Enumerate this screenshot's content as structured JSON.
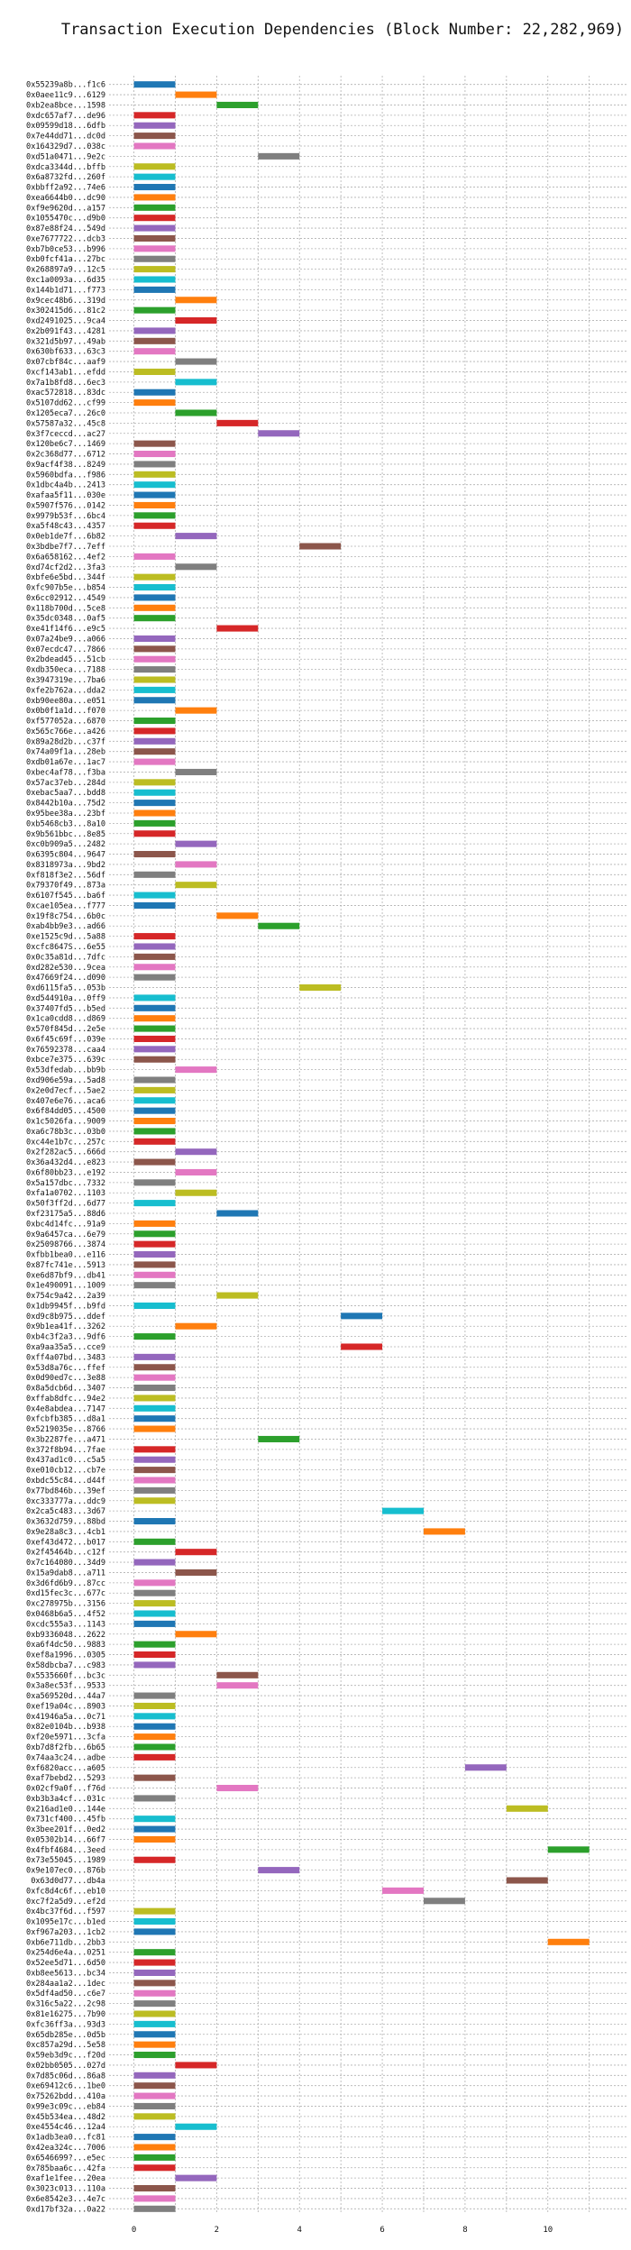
{
  "chart_data": {
    "type": "bar",
    "orientation": "horizontal",
    "title": "Transaction Execution Dependencies (Block Number: 22,282,969)",
    "xlabel": "",
    "ylabel": "",
    "xlim": [
      -0.6,
      11.9
    ],
    "xticks": [
      0,
      2,
      4,
      6,
      8,
      10
    ],
    "grid": "dotted",
    "palette": [
      "#1f77b4",
      "#ff7f0e",
      "#2ca02c",
      "#d62728",
      "#9467bd",
      "#8c564b",
      "#e377c2",
      "#7f7f7f",
      "#bcbd22",
      "#17becf"
    ],
    "bar_width": 1,
    "transactions": [
      {
        "label": "0x55239a8b...f1c6",
        "start": 0
      },
      {
        "label": "0x0aee11c9...6129",
        "start": 1
      },
      {
        "label": "0xb2ea8bce...1598",
        "start": 2
      },
      {
        "label": "0xdc657af7...de96",
        "start": 0
      },
      {
        "label": "0x09599d18...6dfb",
        "start": 0
      },
      {
        "label": "0x7e44dd71...dc0d",
        "start": 0
      },
      {
        "label": "0x164329d7...038c",
        "start": 0
      },
      {
        "label": "0xd51a0471...9e2c",
        "start": 3
      },
      {
        "label": "0xdca3344d...bffb",
        "start": 0
      },
      {
        "label": "0x6a8732fd...260f",
        "start": 0
      },
      {
        "label": "0xbbff2a92...74e6",
        "start": 0
      },
      {
        "label": "0xea6644b0...dc90",
        "start": 0
      },
      {
        "label": "0xf9e9620d...a157",
        "start": 0
      },
      {
        "label": "0x1055470c...d9b0",
        "start": 0
      },
      {
        "label": "0x87e88f24...549d",
        "start": 0
      },
      {
        "label": "0xe7677722...dcb3",
        "start": 0
      },
      {
        "label": "0xb7b0ce53...b996",
        "start": 0
      },
      {
        "label": "0xb0fcf41a...27bc",
        "start": 0
      },
      {
        "label": "0x268897a9...12c5",
        "start": 0
      },
      {
        "label": "0xc1a0093a...6d35",
        "start": 0
      },
      {
        "label": "0x144b1d71...f773",
        "start": 0
      },
      {
        "label": "0x9cec48b6...319d",
        "start": 1
      },
      {
        "label": "0x302415d6...81c2",
        "start": 0
      },
      {
        "label": "0xd2491025...9ca4",
        "start": 1
      },
      {
        "label": "0x2b091f43...4281",
        "start": 0
      },
      {
        "label": "0x321d5b97...49ab",
        "start": 0
      },
      {
        "label": "0x630bf633...63c3",
        "start": 0
      },
      {
        "label": "0x07cbf84c...aaf9",
        "start": 1
      },
      {
        "label": "0xcf143ab1...efdd",
        "start": 0
      },
      {
        "label": "0x7a1b8fd8...6ec3",
        "start": 1
      },
      {
        "label": "0xac572818...83dc",
        "start": 0
      },
      {
        "label": "0x5107dd62...cf99",
        "start": 0
      },
      {
        "label": "0x1205eca7...26c0",
        "start": 1
      },
      {
        "label": "0x57587a32...45c8",
        "start": 2
      },
      {
        "label": "0x3f7ceccd...ac27",
        "start": 3
      },
      {
        "label": "0x120be6c7...1469",
        "start": 0
      },
      {
        "label": "0x2c368d77...6712",
        "start": 0
      },
      {
        "label": "0x9acf4f38...8249",
        "start": 0
      },
      {
        "label": "0x5960bdfa...f986",
        "start": 0
      },
      {
        "label": "0x1dbc4a4b...2413",
        "start": 0
      },
      {
        "label": "0xafaa5f11...030e",
        "start": 0
      },
      {
        "label": "0x5907f576...0142",
        "start": 0
      },
      {
        "label": "0x9979b53f...6bc4",
        "start": 0
      },
      {
        "label": "0xa5f48c43...4357",
        "start": 0
      },
      {
        "label": "0x0eb1de7f...6b82",
        "start": 1
      },
      {
        "label": "0x3bdbe7f7...7eff",
        "start": 4
      },
      {
        "label": "0x6a658162...4ef2",
        "start": 0
      },
      {
        "label": "0xd74cf2d2...3fa3",
        "start": 1
      },
      {
        "label": "0xbfe6e5bd...344f",
        "start": 0
      },
      {
        "label": "0xfc907b5e...b854",
        "start": 0
      },
      {
        "label": "0x6cc02912...4549",
        "start": 0
      },
      {
        "label": "0x118b700d...5ce8",
        "start": 0
      },
      {
        "label": "0x35dc0348...0af5",
        "start": 0
      },
      {
        "label": "0xe41f14f6...e9c5",
        "start": 2
      },
      {
        "label": "0x07a24be9...a066",
        "start": 0
      },
      {
        "label": "0x07ecdc47...7866",
        "start": 0
      },
      {
        "label": "0x2bdead45...51cb",
        "start": 0
      },
      {
        "label": "0xdb350eca...7188",
        "start": 0
      },
      {
        "label": "0x3947319e...7ba6",
        "start": 0
      },
      {
        "label": "0xfe2b762a...dda2",
        "start": 0
      },
      {
        "label": "0xb90ee80a...e051",
        "start": 0
      },
      {
        "label": "0x0b0f1a1d...f070",
        "start": 1
      },
      {
        "label": "0xf577052a...6870",
        "start": 0
      },
      {
        "label": "0x565c766e...a426",
        "start": 0
      },
      {
        "label": "0x89a28d2b...c37f",
        "start": 0
      },
      {
        "label": "0x74a09f1a...28eb",
        "start": 0
      },
      {
        "label": "0xdb01a67e...1ac7",
        "start": 0
      },
      {
        "label": "0xbec4af78...f3ba",
        "start": 1
      },
      {
        "label": "0x57ac37eb...284d",
        "start": 0
      },
      {
        "label": "0xebac5aa7...bdd8",
        "start": 0
      },
      {
        "label": "0x8442b10a...75d2",
        "start": 0
      },
      {
        "label": "0x95bee38a...23bf",
        "start": 0
      },
      {
        "label": "0xb5468cb3...8a10",
        "start": 0
      },
      {
        "label": "0x9b561bbc...8e85",
        "start": 0
      },
      {
        "label": "0xc0b909a5...2482",
        "start": 1
      },
      {
        "label": "0x6395c804...9647",
        "start": 0
      },
      {
        "label": "0x8318973a...9bd2",
        "start": 1
      },
      {
        "label": "0xf818f3e2...56df",
        "start": 0
      },
      {
        "label": "0x79370f49...873a",
        "start": 1
      },
      {
        "label": "0x6107f545...ba6f",
        "start": 0
      },
      {
        "label": "0xcae105ea...f777",
        "start": 0
      },
      {
        "label": "0x19f8c754...6b0c",
        "start": 2
      },
      {
        "label": "0xab4bb9e3...ad66",
        "start": 3
      },
      {
        "label": "0xe1525c9d...5a88",
        "start": 0
      },
      {
        "label": "0xcfc8647S...6e55",
        "start": 0
      },
      {
        "label": "0x0c35a81d...7dfc",
        "start": 0
      },
      {
        "label": "0xd282e530...9cea",
        "start": 0
      },
      {
        "label": "0x47669f24...d090",
        "start": 0
      },
      {
        "label": "0xd6115fa5...053b",
        "start": 4
      },
      {
        "label": "0xd544910a...0ff9",
        "start": 0
      },
      {
        "label": "0x37407fd5...b5ed",
        "start": 0
      },
      {
        "label": "0x1ca0cdd8...d869",
        "start": 0
      },
      {
        "label": "0x570f845d...2e5e",
        "start": 0
      },
      {
        "label": "0x6f45c69f...039e",
        "start": 0
      },
      {
        "label": "0x76592378...caa4",
        "start": 0
      },
      {
        "label": "0xbce7e375...639c",
        "start": 0
      },
      {
        "label": "0x53dfedab...bb9b",
        "start": 1
      },
      {
        "label": "0xd906e59a...5ad8",
        "start": 0
      },
      {
        "label": "0x2e0d7ecf...5ae2",
        "start": 0
      },
      {
        "label": "0x407e6e76...aca6",
        "start": 0
      },
      {
        "label": "0x6f84dd05...4500",
        "start": 0
      },
      {
        "label": "0x1c5026fa...9009",
        "start": 0
      },
      {
        "label": "0xa6c78b3c...03b0",
        "start": 0
      },
      {
        "label": "0xc44e1b7c...257c",
        "start": 0
      },
      {
        "label": "0x2f282ac5...666d",
        "start": 1
      },
      {
        "label": "0x36a432d4...e823",
        "start": 0
      },
      {
        "label": "0x6f80bb23...e192",
        "start": 1
      },
      {
        "label": "0x5a157dbc...7332",
        "start": 0
      },
      {
        "label": "0xfa1a0702...1103",
        "start": 1
      },
      {
        "label": "0x50f3ff2d...6d77",
        "start": 0
      },
      {
        "label": "0xf23175a5...88d6",
        "start": 2
      },
      {
        "label": "0xbc4d14fc...91a9",
        "start": 0
      },
      {
        "label": "0x9a6457ca...6e79",
        "start": 0
      },
      {
        "label": "0x25098766...3874",
        "start": 0
      },
      {
        "label": "0xfbb1bea0...e116",
        "start": 0
      },
      {
        "label": "0x87fc741e...5913",
        "start": 0
      },
      {
        "label": "0xe6d87bf9...db41",
        "start": 0
      },
      {
        "label": "0x1e490091...1009",
        "start": 0
      },
      {
        "label": "0x754c9a42...2a39",
        "start": 2
      },
      {
        "label": "0x1db9945f...b9fd",
        "start": 0
      },
      {
        "label": "0xd9c8b975...ddef",
        "start": 5
      },
      {
        "label": "0x9b1ea41f...3262",
        "start": 1
      },
      {
        "label": "0xb4c3f2a3...9df6",
        "start": 0
      },
      {
        "label": "0xa9aa35a5...cce9",
        "start": 5
      },
      {
        "label": "0xff4a07bd...3483",
        "start": 0
      },
      {
        "label": "0x53d8a76c...ffef",
        "start": 0
      },
      {
        "label": "0x0d90ed7c...3e88",
        "start": 0
      },
      {
        "label": "0x8a5dcb6d...3407",
        "start": 0
      },
      {
        "label": "0xffab8dfc...94e2",
        "start": 0
      },
      {
        "label": "0x4e8abdea...7147",
        "start": 0
      },
      {
        "label": "0xfcbfb385...d8a1",
        "start": 0
      },
      {
        "label": "0x5219035e...8766",
        "start": 0
      },
      {
        "label": "0x3b2287fe...a471",
        "start": 3
      },
      {
        "label": "0x372f8b94...7fae",
        "start": 0
      },
      {
        "label": "0x437ad1c0...c5a5",
        "start": 0
      },
      {
        "label": "0xe010cb12...cb7e",
        "start": 0
      },
      {
        "label": "0xbdc55c84...d44f",
        "start": 0
      },
      {
        "label": "0x77bd846b...39ef",
        "start": 0
      },
      {
        "label": "0xc333777a...ddc9",
        "start": 0
      },
      {
        "label": "0x2ca5c483...3d67",
        "start": 6
      },
      {
        "label": "0x3632d759...88bd",
        "start": 0
      },
      {
        "label": "0x9e28a8c3...4cb1",
        "start": 7
      },
      {
        "label": "0xef43d472...b017",
        "start": 0
      },
      {
        "label": "0x2f45464b...c12f",
        "start": 1
      },
      {
        "label": "0x7c164080...34d9",
        "start": 0
      },
      {
        "label": "0x15a9dab8...a711",
        "start": 1
      },
      {
        "label": "0x3d6fd6b9...87cc",
        "start": 0
      },
      {
        "label": "0xd15fec3c...677c",
        "start": 0
      },
      {
        "label": "0xc278975b...3156",
        "start": 0
      },
      {
        "label": "0x0468b6a5...4f52",
        "start": 0
      },
      {
        "label": "0xcdc555a3...1143",
        "start": 0
      },
      {
        "label": "0xb9336048...2622",
        "start": 1
      },
      {
        "label": "0xa6f4dc50...9883",
        "start": 0
      },
      {
        "label": "0xef8a1996...0305",
        "start": 0
      },
      {
        "label": "0x58dbcba7...c983",
        "start": 0
      },
      {
        "label": "0x5535660f...bc3c",
        "start": 2
      },
      {
        "label": "0x3a8ec53f...9533",
        "start": 2
      },
      {
        "label": "0xa569520d...44a7",
        "start": 0
      },
      {
        "label": "0xef19a04c...8903",
        "start": 0
      },
      {
        "label": "0x41946a5a...0c71",
        "start": 0
      },
      {
        "label": "0x82e0104b...b938",
        "start": 0
      },
      {
        "label": "0xf20e5971...3cfa",
        "start": 0
      },
      {
        "label": "0xb7d8f2fb...6b65",
        "start": 0
      },
      {
        "label": "0x74aa3c24...adbe",
        "start": 0
      },
      {
        "label": "0xf6820acc...a605",
        "start": 8
      },
      {
        "label": "0xaf7bebd2...5293",
        "start": 0
      },
      {
        "label": "0x02cf9a0f...f76d",
        "start": 2
      },
      {
        "label": "0xb3b3a4cf...031c",
        "start": 0
      },
      {
        "label": "0x216ad1e0...144e",
        "start": 9
      },
      {
        "label": "0x731cf400...45fb",
        "start": 0
      },
      {
        "label": "0x3bee201f...0ed2",
        "start": 0
      },
      {
        "label": "0x05302b14...66f7",
        "start": 0
      },
      {
        "label": "0x4fbf4684...3eed",
        "start": 10
      },
      {
        "label": "0x73e55045...1989",
        "start": 0
      },
      {
        "label": "0x9e107ec0...876b",
        "start": 3
      },
      {
        "label": "0x63d0d77...db4a",
        "start": 9
      },
      {
        "label": "0xfc8d4c6f...eb10",
        "start": 6
      },
      {
        "label": "0xc7f2a5d9...ef2d",
        "start": 7
      },
      {
        "label": "0x4bc37f6d...f597",
        "start": 0
      },
      {
        "label": "0x1095e17c...b1ed",
        "start": 0
      },
      {
        "label": "0xf967a203...1cb2",
        "start": 0
      },
      {
        "label": "0xb6e711db...2bb3",
        "start": 10
      },
      {
        "label": "0x254d6e4a...0251",
        "start": 0
      },
      {
        "label": "0x52ee5d71...6d50",
        "start": 0
      },
      {
        "label": "0xb8ee5613...bc34",
        "start": 0
      },
      {
        "label": "0x284aa1a2...1dec",
        "start": 0
      },
      {
        "label": "0x5df4ad50...c6e7",
        "start": 0
      },
      {
        "label": "0x316c5a22...2c98",
        "start": 0
      },
      {
        "label": "0x81e16275...7b90",
        "start": 0
      },
      {
        "label": "0xfc36ff3a...93d3",
        "start": 0
      },
      {
        "label": "0x65db285e...0d5b",
        "start": 0
      },
      {
        "label": "0xc857a29d...5e58",
        "start": 0
      },
      {
        "label": "0x59eb3d9c...f20d",
        "start": 0
      },
      {
        "label": "0x02bb0505...027d",
        "start": 1
      },
      {
        "label": "0x7d85c06d...86a8",
        "start": 0
      },
      {
        "label": "0xe69412c6...1be0",
        "start": 0
      },
      {
        "label": "0x75262bdd...410a",
        "start": 0
      },
      {
        "label": "0x99e3c09c...eb84",
        "start": 0
      },
      {
        "label": "0x45b534ea...48d2",
        "start": 0
      },
      {
        "label": "0xe4554c46...12a4",
        "start": 1
      },
      {
        "label": "0x1adb3ea0...fc81",
        "start": 0
      },
      {
        "label": "0x42ea324c...7006",
        "start": 0
      },
      {
        "label": "0x6546699?...e5ec",
        "start": 0
      },
      {
        "label": "0x785baa6c...42fa",
        "start": 0
      },
      {
        "label": "0xaf1e1fee...20ea",
        "start": 1
      },
      {
        "label": "0x3023c013...110a",
        "start": 0
      },
      {
        "label": "0x6e8542e3...4e7c",
        "start": 0
      },
      {
        "label": "0xd17bf32a...0a22",
        "start": 0
      }
    ]
  }
}
